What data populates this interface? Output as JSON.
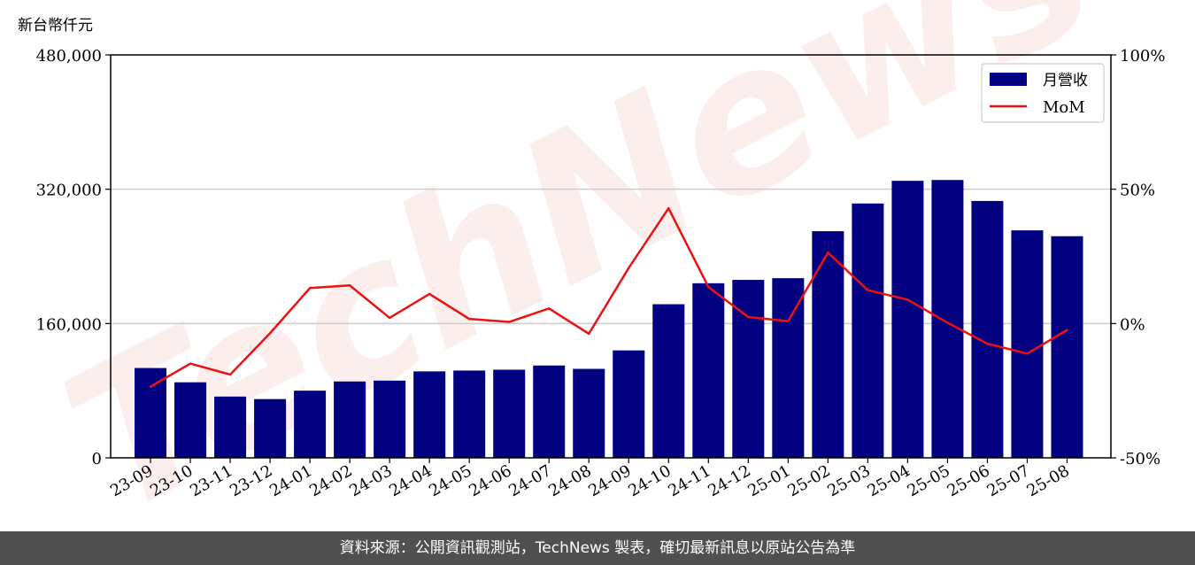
{
  "chart_data": {
    "type": "bar",
    "unit_label": "新台幣仟元",
    "watermark": "TechNews",
    "categories": [
      "23-09",
      "23-10",
      "23-11",
      "23-12",
      "24-01",
      "24-02",
      "24-03",
      "24-04",
      "24-05",
      "24-06",
      "24-07",
      "24-08",
      "24-09",
      "24-10",
      "24-11",
      "24-12",
      "25-01",
      "25-02",
      "25-03",
      "25-04",
      "25-05",
      "25-06",
      "25-07",
      "25-08"
    ],
    "series": [
      {
        "name": "月營收",
        "type": "bar",
        "axis": "left",
        "color": "#000080",
        "values": [
          107000,
          90000,
          73000,
          70000,
          80000,
          91000,
          92000,
          103000,
          104000,
          105000,
          110000,
          106000,
          128000,
          183000,
          208000,
          212000,
          214000,
          270000,
          303000,
          330000,
          331000,
          306000,
          271000,
          264000
        ]
      },
      {
        "name": "MoM",
        "type": "line",
        "axis": "right",
        "color": "#ee1111",
        "values": [
          -23.5,
          -14.9,
          -19,
          -3.6,
          13.2,
          14.2,
          2.1,
          11,
          1.7,
          0.6,
          5.6,
          -3.8,
          20.7,
          42.9,
          13.6,
          2.4,
          0.9,
          26.4,
          12.4,
          8.9,
          0.3,
          -7.5,
          -11.2,
          -2.4
        ]
      }
    ],
    "y_left": {
      "ylim": [
        0,
        480000
      ],
      "ticks": [
        0,
        160000,
        320000,
        480000
      ],
      "tick_labels": [
        "0",
        "160,000",
        "320,000",
        "480,000"
      ]
    },
    "y_right": {
      "ylim": [
        -50,
        100
      ],
      "ticks": [
        -50,
        0,
        50,
        100
      ],
      "tick_labels": [
        "-50%",
        "0%",
        "50%",
        "100%"
      ]
    },
    "grid": "horizontal",
    "legend_position": "top-right"
  },
  "footer": {
    "text": "資料來源：公開資訊觀測站，TechNews 製表，確切最新訊息以原站公告為準"
  }
}
